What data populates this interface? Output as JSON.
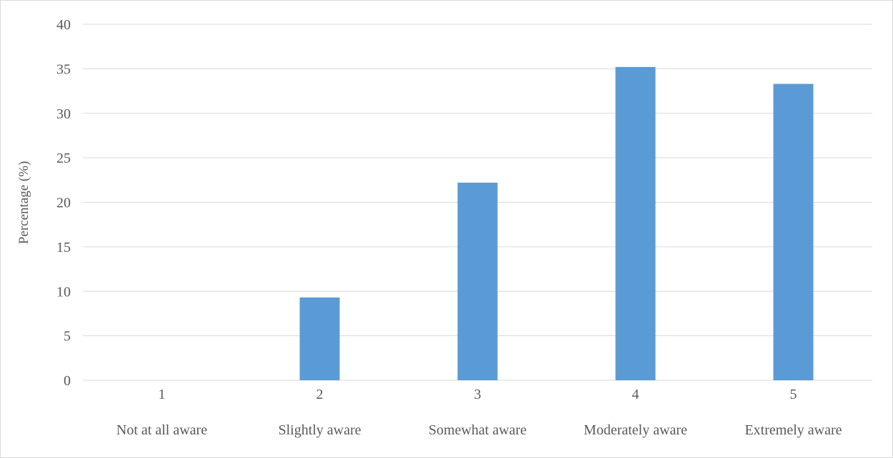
{
  "chart_data": {
    "type": "bar",
    "title": "",
    "xlabel": "",
    "ylabel": "Percentage (%)",
    "ylim": [
      0,
      40
    ],
    "yticks": [
      0,
      5,
      10,
      15,
      20,
      25,
      30,
      35,
      40
    ],
    "grid": true,
    "legend": "none",
    "bar_color": "#5b9bd5",
    "grid_color": "#d9d9d9",
    "categories": [
      {
        "number": "1",
        "label": "Not at all aware"
      },
      {
        "number": "2",
        "label": "Slightly aware"
      },
      {
        "number": "3",
        "label": "Somewhat aware"
      },
      {
        "number": "4",
        "label": "Moderately aware"
      },
      {
        "number": "5",
        "label": "Extremely aware"
      }
    ],
    "values": [
      0,
      9.3,
      22.2,
      35.2,
      33.3
    ]
  }
}
